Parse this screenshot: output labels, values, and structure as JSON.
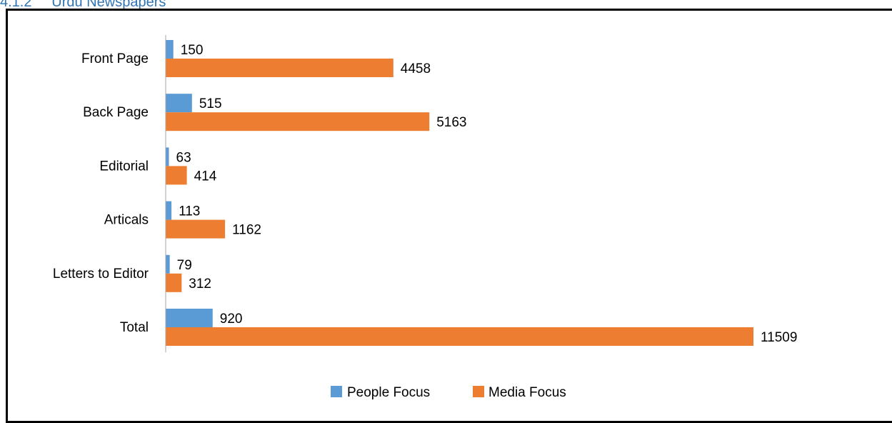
{
  "heading": {
    "number": "4.1.2",
    "title": "Urdu Newspapers"
  },
  "colors": {
    "people": "#5B9BD5",
    "media": "#ED7D31",
    "axis": "#A6A6A6",
    "heading": "#2E74B5"
  },
  "chart_data": {
    "type": "bar",
    "orientation": "horizontal",
    "categories": [
      "Front Page",
      "Back Page",
      "Editorial",
      "Articals",
      "Letters to Editor",
      "Total"
    ],
    "series": [
      {
        "name": "People Focus",
        "values": [
          150,
          515,
          63,
          113,
          79,
          920
        ]
      },
      {
        "name": "Media Focus",
        "values": [
          4458,
          5163,
          414,
          1162,
          312,
          11509
        ]
      }
    ],
    "title": "",
    "xlabel": "",
    "ylabel": "",
    "xlim": [
      0,
      11509
    ],
    "grid": false,
    "legend_position": "bottom",
    "data_labels": true
  }
}
